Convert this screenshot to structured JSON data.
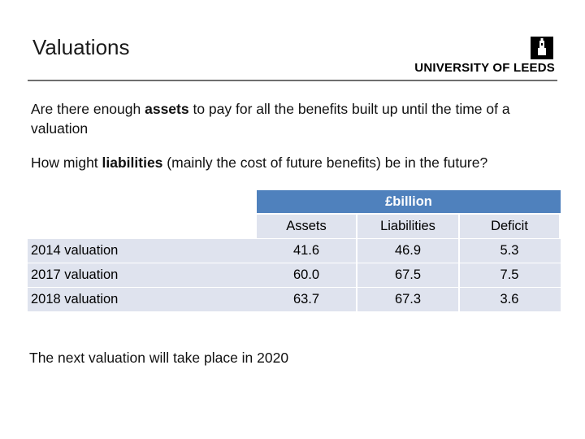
{
  "slide": {
    "title": "Valuations",
    "logo_text": "UNIVERSITY OF LEEDS",
    "paragraph1_pre": "Are there enough ",
    "paragraph1_bold": "assets",
    "paragraph1_post": " to pay for all the benefits built up until the time of a valuation",
    "paragraph2_pre": "How might ",
    "paragraph2_bold": "liabilities",
    "paragraph2_post": " (mainly the cost of future benefits) be in the future?",
    "footer": "The next valuation will take place in 2020"
  },
  "table": {
    "group_header": "£billion",
    "columns": [
      "Assets",
      "Liabilities",
      "Deficit"
    ],
    "rows": [
      {
        "label": "2014 valuation",
        "values": [
          "41.6",
          "46.9",
          "5.3"
        ]
      },
      {
        "label": "2017 valuation",
        "values": [
          "60.0",
          "67.5",
          "7.5"
        ]
      },
      {
        "label": "2018 valuation",
        "values": [
          "63.7",
          "67.3",
          "3.6"
        ]
      }
    ]
  }
}
